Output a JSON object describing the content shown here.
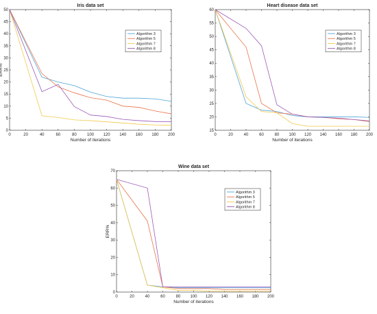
{
  "colors": {
    "Algorithm 3": "#4ea3d8",
    "Algorithm 5": "#e8734a",
    "Algorithm 7": "#f2c84b",
    "Algorithm 8": "#9b59b6",
    "axis": "#262626"
  },
  "chart_data": [
    {
      "type": "line",
      "title": "Iris data set",
      "xlabel": "Number of iterations",
      "ylabel": "ERR%",
      "xlim": [
        0,
        200
      ],
      "ylim": [
        0,
        50
      ],
      "xticks": [
        "0",
        "20",
        "40",
        "60",
        "80",
        "100",
        "120",
        "140",
        "160",
        "180",
        "200"
      ],
      "yticks": [
        "0",
        "5",
        "10",
        "15",
        "20",
        "25",
        "30",
        "35",
        "40",
        "45",
        "50"
      ],
      "legend_position": "top-right",
      "x": [
        0,
        40,
        60,
        80,
        100,
        120,
        140,
        160,
        180,
        200
      ],
      "series": [
        {
          "name": "Algorithm 3",
          "values": [
            50,
            22,
            20,
            18.5,
            15.8,
            14,
            13.3,
            13.3,
            13,
            12
          ]
        },
        {
          "name": "Algorithm 5",
          "values": [
            50,
            23.5,
            18,
            15.5,
            13.5,
            12.5,
            10,
            9.5,
            8,
            6.8
          ]
        },
        {
          "name": "Algorithm 7",
          "values": [
            50,
            6,
            5.3,
            4.3,
            4,
            3.5,
            3,
            2.5,
            2.2,
            2
          ]
        },
        {
          "name": "Algorithm 8",
          "values": [
            50,
            16,
            19,
            9.8,
            6.3,
            5.7,
            4.5,
            4,
            3.6,
            3.6
          ]
        }
      ]
    },
    {
      "type": "line",
      "title": "Heart disease data set",
      "xlabel": "Number of iterations",
      "ylabel": "",
      "xlim": [
        0,
        200
      ],
      "ylim": [
        15,
        60
      ],
      "xticks": [
        "0",
        "20",
        "40",
        "60",
        "80",
        "100",
        "120",
        "140",
        "160",
        "180",
        "200"
      ],
      "yticks": [
        "15",
        "20",
        "25",
        "30",
        "35",
        "40",
        "45",
        "50",
        "55",
        "60"
      ],
      "legend_position": "top-right",
      "x": [
        0,
        40,
        60,
        80,
        100,
        120,
        140,
        160,
        180,
        200
      ],
      "series": [
        {
          "name": "Algorithm 3",
          "values": [
            60,
            25,
            22.5,
            22,
            20.5,
            20,
            20,
            20,
            20,
            19.8
          ]
        },
        {
          "name": "Algorithm 5",
          "values": [
            60,
            46,
            25,
            21.5,
            21,
            20,
            19.8,
            19.3,
            19,
            18.2
          ]
        },
        {
          "name": "Algorithm 7",
          "values": [
            60,
            27.5,
            22,
            21.5,
            17.5,
            16.5,
            16.5,
            16.5,
            16.5,
            16.5
          ]
        },
        {
          "name": "Algorithm 8",
          "values": [
            60,
            53,
            46.5,
            24.5,
            21,
            20,
            19.8,
            19.5,
            19,
            18.5
          ]
        }
      ]
    },
    {
      "type": "line",
      "title": "Wine data set",
      "xlabel": "Number of iterations",
      "ylabel": "ERR%",
      "xlim": [
        0,
        200
      ],
      "ylim": [
        0,
        70
      ],
      "xticks": [
        "0",
        "20",
        "40",
        "60",
        "80",
        "100",
        "120",
        "140",
        "160",
        "180",
        "200"
      ],
      "yticks": [
        "0",
        "10",
        "20",
        "30",
        "40",
        "50",
        "60",
        "70"
      ],
      "legend_position": "top-right",
      "x": [
        0,
        40,
        60,
        80,
        100,
        120,
        140,
        160,
        180,
        200
      ],
      "series": [
        {
          "name": "Algorithm 3",
          "values": [
            65,
            4,
            3,
            2.5,
            2.5,
            2.5,
            2.5,
            2.5,
            2.5,
            2.5
          ]
        },
        {
          "name": "Algorithm 5",
          "values": [
            65,
            41,
            3,
            2,
            2,
            2,
            1.5,
            1.5,
            1.5,
            1.5
          ]
        },
        {
          "name": "Algorithm 7",
          "values": [
            65,
            4,
            2.5,
            1,
            1,
            0.5,
            0.5,
            0.5,
            0.5,
            0.5
          ]
        },
        {
          "name": "Algorithm 8",
          "values": [
            65,
            60,
            3,
            3,
            3,
            3,
            3,
            3,
            3,
            3
          ]
        }
      ]
    }
  ]
}
